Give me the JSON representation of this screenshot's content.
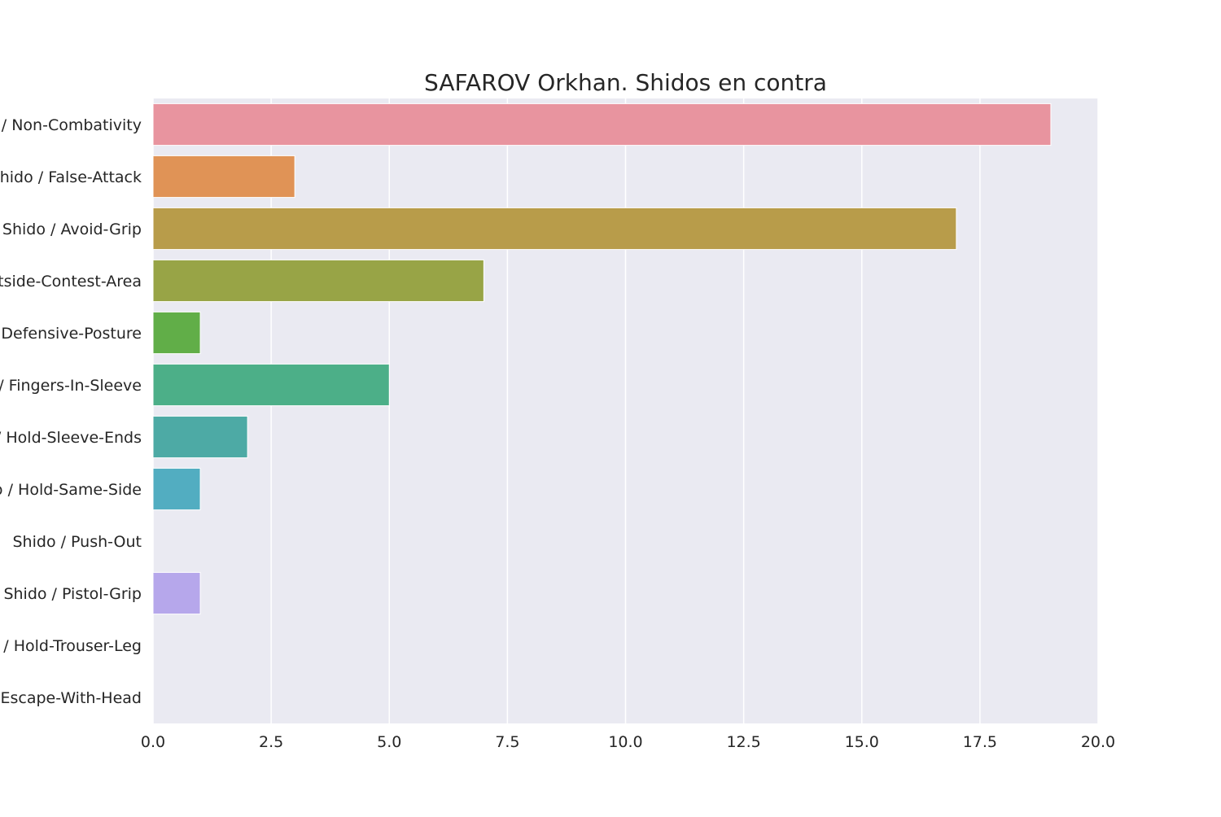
{
  "chart_data": {
    "type": "bar",
    "orientation": "horizontal",
    "title": "SAFAROV Orkhan. Shidos en contra",
    "xlabel": "",
    "ylabel": "",
    "xlim": [
      0,
      20
    ],
    "x_ticks": [
      0,
      2.5,
      5,
      7.5,
      10,
      12.5,
      15,
      17.5,
      20
    ],
    "x_tick_labels": [
      "0.0",
      "2.5",
      "5.0",
      "7.5",
      "10.0",
      "12.5",
      "15.0",
      "17.5",
      "20.0"
    ],
    "grid": true,
    "background_color": "#eaeaf2",
    "grid_color": "#ffffff",
    "categories": [
      "Shido / Non-Combativity",
      "Shido / False-Attack",
      "Shido / Avoid-Grip",
      "Shido / Outside-Contest-Area",
      "Shido / Defensive-Posture",
      "Shido / Fingers-In-Sleeve",
      "Shido / Hold-Sleeve-Ends",
      "Shido / Hold-Same-Side",
      "Shido / Push-Out",
      "Shido / Pistol-Grip",
      "Shido / Hold-Trouser-Leg",
      "Shido / Escape-With-Head"
    ],
    "values": [
      19,
      3,
      17,
      7,
      1,
      5,
      2,
      1,
      0,
      1,
      0,
      0
    ],
    "colors": [
      "#e8949f",
      "#e09356",
      "#b89c4a",
      "#98a446",
      "#61ae48",
      "#4caf88",
      "#4daaa5",
      "#52adc1",
      "#8eb8ea",
      "#b6a7eb",
      "#e09ae4",
      "#e89ac0"
    ]
  }
}
